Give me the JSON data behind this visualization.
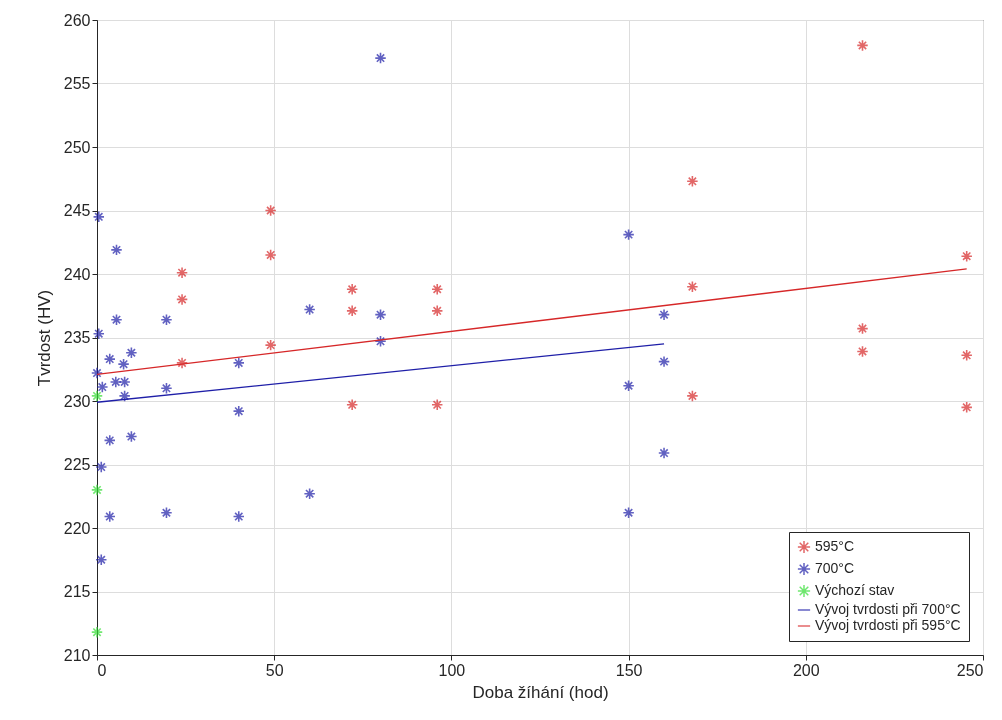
{
  "chart_data": {
    "type": "scatter",
    "xlabel": "Doba žíhání (hod)",
    "ylabel": "Tvrdost (HV)",
    "xlim": [
      0,
      250
    ],
    "xticks": [
      0,
      50,
      100,
      150,
      200,
      250
    ],
    "ylim": [
      210,
      260
    ],
    "yticks": [
      210,
      215,
      220,
      225,
      230,
      235,
      240,
      245,
      250,
      255,
      260
    ],
    "grid": true,
    "legend": "bottom right",
    "series": [
      {
        "name": "595°C",
        "marker": "cross",
        "color": "#d62728",
        "x": [
          24,
          24,
          24,
          49,
          49,
          49,
          72,
          72,
          72,
          96,
          96,
          96,
          168,
          168,
          168,
          216,
          216,
          216,
          245.4,
          245.4,
          245.4
        ],
        "values": [
          240.1,
          238.0,
          233.0,
          245.0,
          241.5,
          234.4,
          238.8,
          237.1,
          229.7,
          238.8,
          237.1,
          229.7,
          247.3,
          239.0,
          230.4,
          258.0,
          235.7,
          233.9,
          241.4,
          233.6,
          229.5
        ]
      },
      {
        "name": "700°C",
        "marker": "cross",
        "color": "#1f1fa8",
        "x": [
          0.5,
          5.5,
          5.5,
          0.5,
          3.6,
          7.5,
          9.7,
          0,
          1.5,
          5.3,
          7.8,
          7.8,
          3.6,
          9.7,
          1.2,
          3.6,
          1.2,
          19.6,
          19.6,
          19.6,
          40,
          40,
          40,
          60,
          60,
          80,
          80,
          80,
          150,
          150,
          150,
          160,
          160,
          160
        ],
        "values": [
          244.5,
          241.9,
          236.4,
          235.3,
          233.3,
          232.9,
          233.8,
          232.2,
          231.1,
          231.5,
          231.5,
          230.4,
          226.9,
          227.2,
          224.8,
          220.9,
          217.5,
          236.4,
          231.0,
          221.2,
          233.0,
          229.2,
          220.9,
          237.2,
          222.7,
          257.0,
          236.8,
          234.7,
          243.1,
          231.2,
          221.2,
          236.8,
          233.1,
          225.9
        ]
      },
      {
        "name": "Výchozí stav",
        "marker": "cross",
        "color": "#33dd33",
        "x": [
          0,
          0,
          0
        ],
        "values": [
          230.4,
          223.0,
          211.8
        ]
      },
      {
        "name": "Vývoj tvrdosti při 700°C",
        "type": "line",
        "marker": "none",
        "color": "#1f1fa8",
        "x": [
          0,
          160
        ],
        "values": [
          229.9,
          234.5
        ]
      },
      {
        "name": "Vývoj tvrdosti při 595°C",
        "type": "line",
        "marker": "none",
        "color": "#d62728",
        "x": [
          0,
          245.4
        ],
        "values": [
          232.1,
          240.4
        ]
      }
    ]
  }
}
